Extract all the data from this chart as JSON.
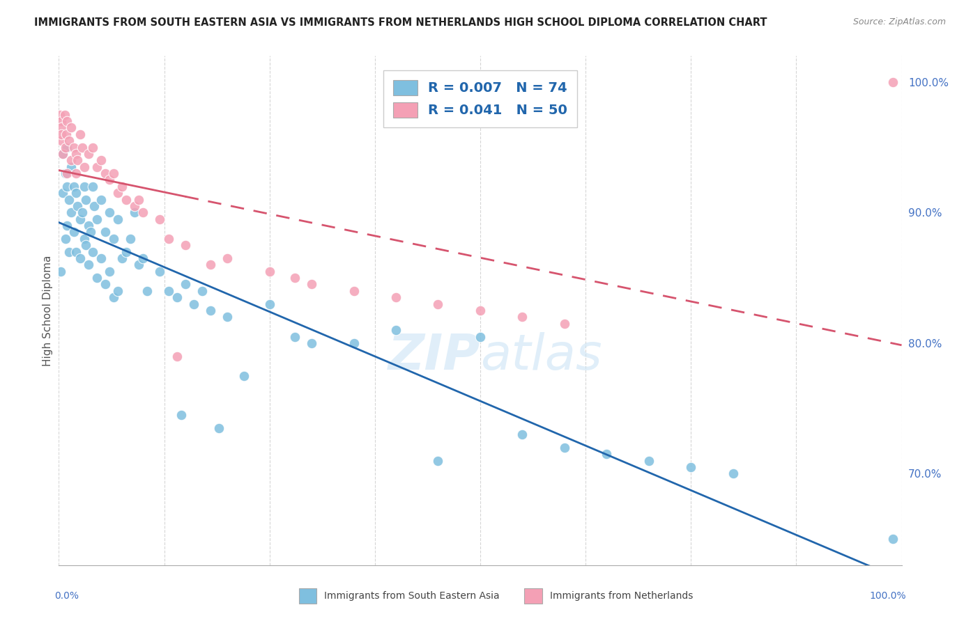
{
  "title": "IMMIGRANTS FROM SOUTH EASTERN ASIA VS IMMIGRANTS FROM NETHERLANDS HIGH SCHOOL DIPLOMA CORRELATION CHART",
  "source": "Source: ZipAtlas.com",
  "ylabel": "High School Diploma",
  "right_yticks": [
    70.0,
    80.0,
    90.0,
    100.0
  ],
  "ylim": [
    63,
    102
  ],
  "xlim": [
    0,
    100
  ],
  "blue_R": 0.007,
  "blue_N": 74,
  "pink_R": 0.041,
  "pink_N": 50,
  "blue_color": "#7fbfdf",
  "pink_color": "#f4a0b5",
  "blue_line_color": "#2166ac",
  "pink_line_color": "#d6546e",
  "watermark_color": "#cce4f5",
  "blue_label": "Immigrants from South Eastern Asia",
  "pink_label": "Immigrants from Netherlands",
  "blue_scatter_x": [
    0.2,
    0.5,
    0.5,
    0.8,
    0.8,
    1.0,
    1.0,
    1.0,
    1.2,
    1.2,
    1.5,
    1.5,
    1.8,
    1.8,
    2.0,
    2.0,
    2.2,
    2.5,
    2.5,
    2.8,
    3.0,
    3.0,
    3.2,
    3.2,
    3.5,
    3.5,
    3.8,
    4.0,
    4.0,
    4.2,
    4.5,
    4.5,
    5.0,
    5.0,
    5.5,
    5.5,
    6.0,
    6.0,
    6.5,
    6.5,
    7.0,
    7.0,
    7.5,
    8.0,
    8.5,
    9.0,
    9.5,
    10.0,
    10.5,
    12.0,
    13.0,
    14.0,
    14.5,
    15.0,
    16.0,
    17.0,
    18.0,
    19.0,
    20.0,
    22.0,
    25.0,
    28.0,
    30.0,
    35.0,
    40.0,
    45.0,
    50.0,
    55.0,
    60.0,
    65.0,
    70.0,
    75.0,
    80.0,
    99.0
  ],
  "blue_scatter_y": [
    85.5,
    94.5,
    91.5,
    93.0,
    88.0,
    95.0,
    92.0,
    89.0,
    91.0,
    87.0,
    93.5,
    90.0,
    92.0,
    88.5,
    91.5,
    87.0,
    90.5,
    89.5,
    86.5,
    90.0,
    92.0,
    88.0,
    91.0,
    87.5,
    89.0,
    86.0,
    88.5,
    92.0,
    87.0,
    90.5,
    89.5,
    85.0,
    91.0,
    86.5,
    88.5,
    84.5,
    90.0,
    85.5,
    88.0,
    83.5,
    89.5,
    84.0,
    86.5,
    87.0,
    88.0,
    90.0,
    86.0,
    86.5,
    84.0,
    85.5,
    84.0,
    83.5,
    74.5,
    84.5,
    83.0,
    84.0,
    82.5,
    73.5,
    82.0,
    77.5,
    83.0,
    80.5,
    80.0,
    80.0,
    81.0,
    71.0,
    80.5,
    73.0,
    72.0,
    71.5,
    71.0,
    70.5,
    70.0,
    65.0
  ],
  "pink_scatter_x": [
    0.1,
    0.3,
    0.3,
    0.3,
    0.3,
    0.5,
    0.7,
    0.8,
    0.9,
    1.0,
    1.0,
    1.2,
    1.5,
    1.5,
    1.8,
    2.0,
    2.0,
    2.2,
    2.5,
    2.8,
    3.0,
    3.5,
    4.0,
    4.5,
    5.0,
    5.5,
    6.0,
    6.5,
    7.0,
    7.5,
    8.0,
    9.0,
    9.5,
    10.0,
    12.0,
    13.0,
    14.0,
    15.0,
    18.0,
    20.0,
    25.0,
    28.0,
    30.0,
    35.0,
    40.0,
    45.0,
    50.0,
    55.0,
    60.0,
    99.0
  ],
  "pink_scatter_y": [
    97.5,
    97.0,
    96.5,
    95.5,
    96.0,
    94.5,
    97.5,
    95.0,
    96.0,
    97.0,
    93.0,
    95.5,
    96.5,
    94.0,
    95.0,
    94.5,
    93.0,
    94.0,
    96.0,
    95.0,
    93.5,
    94.5,
    95.0,
    93.5,
    94.0,
    93.0,
    92.5,
    93.0,
    91.5,
    92.0,
    91.0,
    90.5,
    91.0,
    90.0,
    89.5,
    88.0,
    79.0,
    87.5,
    86.0,
    86.5,
    85.5,
    85.0,
    84.5,
    84.0,
    83.5,
    83.0,
    82.5,
    82.0,
    81.5,
    100.0
  ]
}
